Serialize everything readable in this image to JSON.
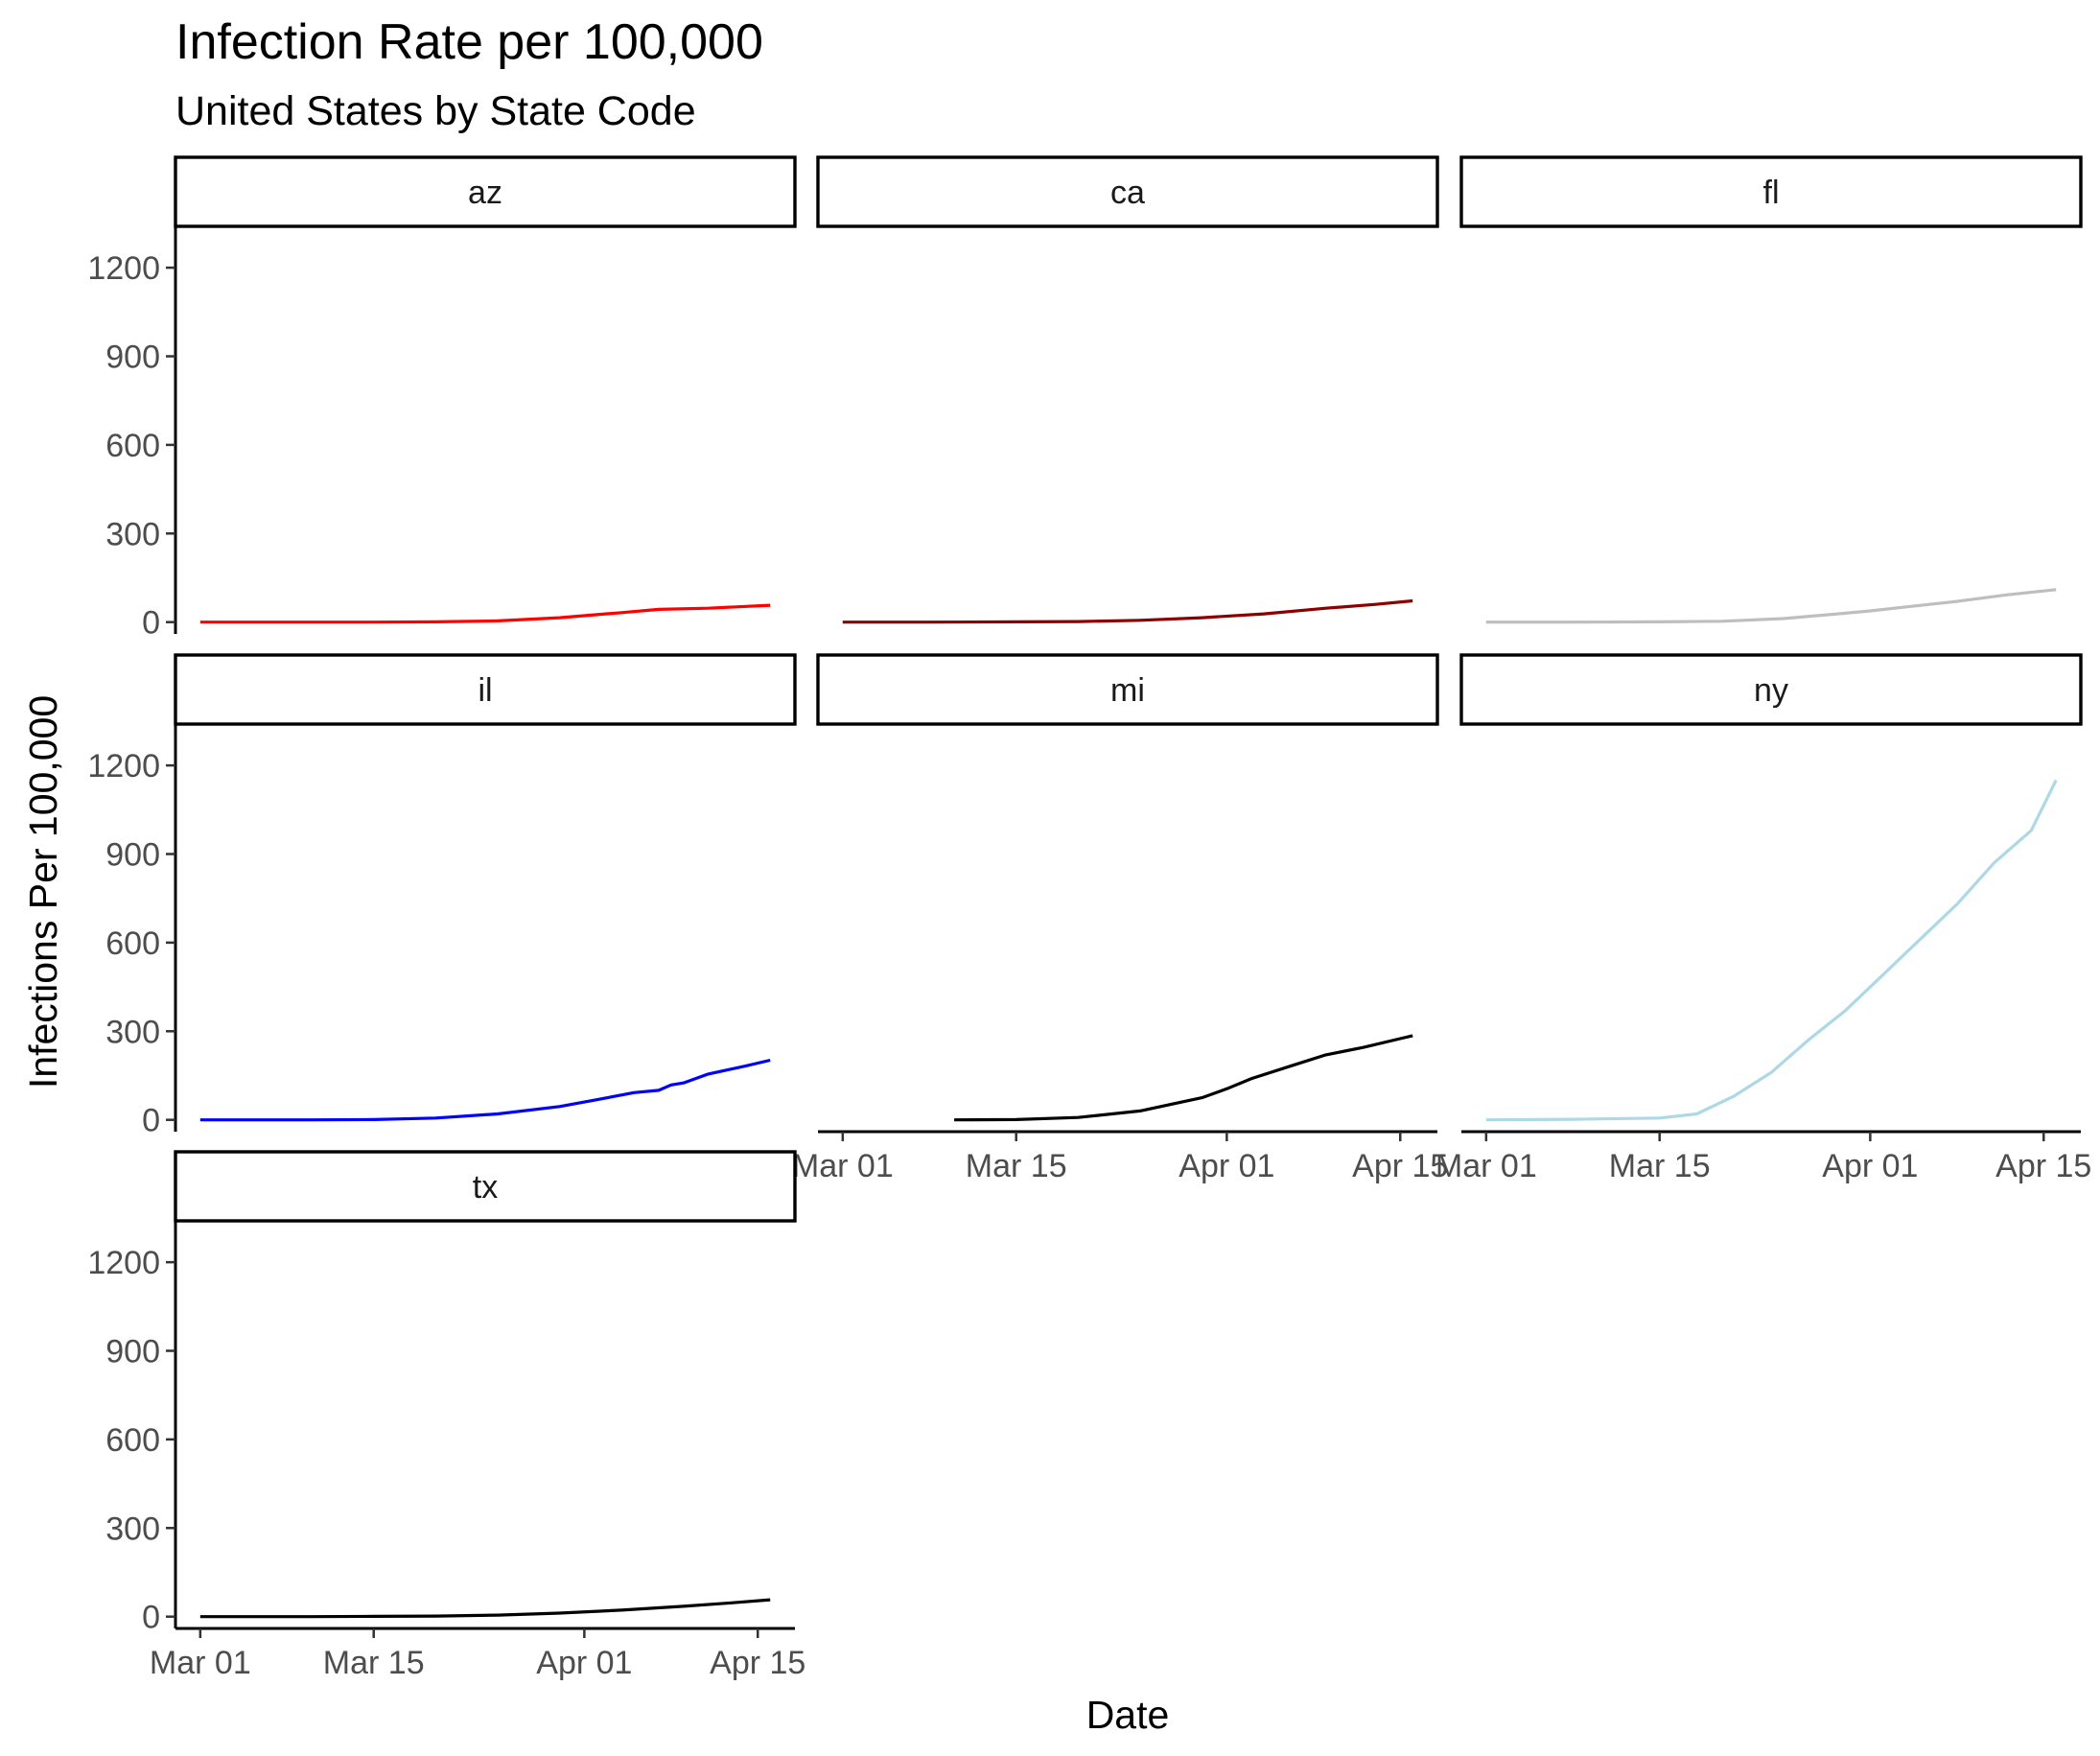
{
  "chart_data": {
    "type": "line",
    "title": "Infection Rate per 100,000",
    "subtitle": "United States by State Code",
    "xlabel": "Date",
    "ylabel": "Infections Per 100,000",
    "facet_layout": "3 columns, shared axes",
    "x_tick_labels": [
      "Mar 01",
      "Mar 15",
      "Apr 01",
      "Apr 15"
    ],
    "x_ticks": [
      "2020-03-01",
      "2020-03-15",
      "2020-04-01",
      "2020-04-15"
    ],
    "xlim": [
      "2020-02-28",
      "2020-04-18"
    ],
    "y_ticks": [
      0,
      300,
      600,
      900,
      1200
    ],
    "ylim": [
      -40,
      1340
    ],
    "grid": false,
    "legend": "none",
    "facets": [
      {
        "label": "az",
        "color": "#ff0000",
        "x": [
          "2020-03-01",
          "2020-03-08",
          "2020-03-15",
          "2020-03-20",
          "2020-03-25",
          "2020-03-30",
          "2020-04-04",
          "2020-04-07",
          "2020-04-11",
          "2020-04-16"
        ],
        "y": [
          0,
          0,
          0,
          1,
          4,
          15,
          32,
          43,
          47,
          57
        ]
      },
      {
        "label": "ca",
        "color": "#8b0000",
        "x": [
          "2020-03-01",
          "2020-03-08",
          "2020-03-15",
          "2020-03-20",
          "2020-03-25",
          "2020-03-30",
          "2020-04-04",
          "2020-04-09",
          "2020-04-13",
          "2020-04-16"
        ],
        "y": [
          0,
          0,
          1,
          2,
          6,
          15,
          28,
          47,
          60,
          72
        ]
      },
      {
        "label": "fl",
        "color": "#bebebe",
        "x": [
          "2020-03-01",
          "2020-03-08",
          "2020-03-15",
          "2020-03-20",
          "2020-03-25",
          "2020-03-30",
          "2020-04-01",
          "2020-04-04",
          "2020-04-08",
          "2020-04-12",
          "2020-04-16"
        ],
        "y": [
          0,
          0,
          1,
          3,
          12,
          30,
          38,
          52,
          70,
          92,
          110
        ]
      },
      {
        "label": "il",
        "color": "#0000ff",
        "x": [
          "2020-03-01",
          "2020-03-10",
          "2020-03-15",
          "2020-03-20",
          "2020-03-25",
          "2020-03-30",
          "2020-04-02",
          "2020-04-05",
          "2020-04-07",
          "2020-04-08",
          "2020-04-09",
          "2020-04-11",
          "2020-04-14",
          "2020-04-16"
        ],
        "y": [
          0,
          0,
          1,
          6,
          20,
          45,
          68,
          92,
          100,
          118,
          125,
          155,
          182,
          202
        ]
      },
      {
        "label": "mi",
        "color": "#000000",
        "x": [
          "2020-03-10",
          "2020-03-15",
          "2020-03-20",
          "2020-03-25",
          "2020-03-30",
          "2020-04-01",
          "2020-04-03",
          "2020-04-06",
          "2020-04-09",
          "2020-04-12",
          "2020-04-15",
          "2020-04-16"
        ],
        "y": [
          0,
          1,
          8,
          30,
          75,
          105,
          140,
          180,
          220,
          245,
          275,
          285
        ]
      },
      {
        "label": "ny",
        "color": "#add8e6",
        "x": [
          "2020-03-01",
          "2020-03-08",
          "2020-03-15",
          "2020-03-18",
          "2020-03-21",
          "2020-03-24",
          "2020-03-27",
          "2020-03-30",
          "2020-04-02",
          "2020-04-05",
          "2020-04-08",
          "2020-04-11",
          "2020-04-14",
          "2020-04-16"
        ],
        "y": [
          0,
          2,
          6,
          20,
          80,
          160,
          270,
          370,
          490,
          610,
          730,
          870,
          980,
          1150
        ]
      },
      {
        "label": "tx",
        "color": "#000000",
        "x": [
          "2020-03-01",
          "2020-03-10",
          "2020-03-15",
          "2020-03-20",
          "2020-03-25",
          "2020-03-30",
          "2020-04-04",
          "2020-04-09",
          "2020-04-13",
          "2020-04-16"
        ],
        "y": [
          0,
          0,
          1,
          2,
          5,
          12,
          22,
          35,
          47,
          57
        ]
      }
    ]
  }
}
